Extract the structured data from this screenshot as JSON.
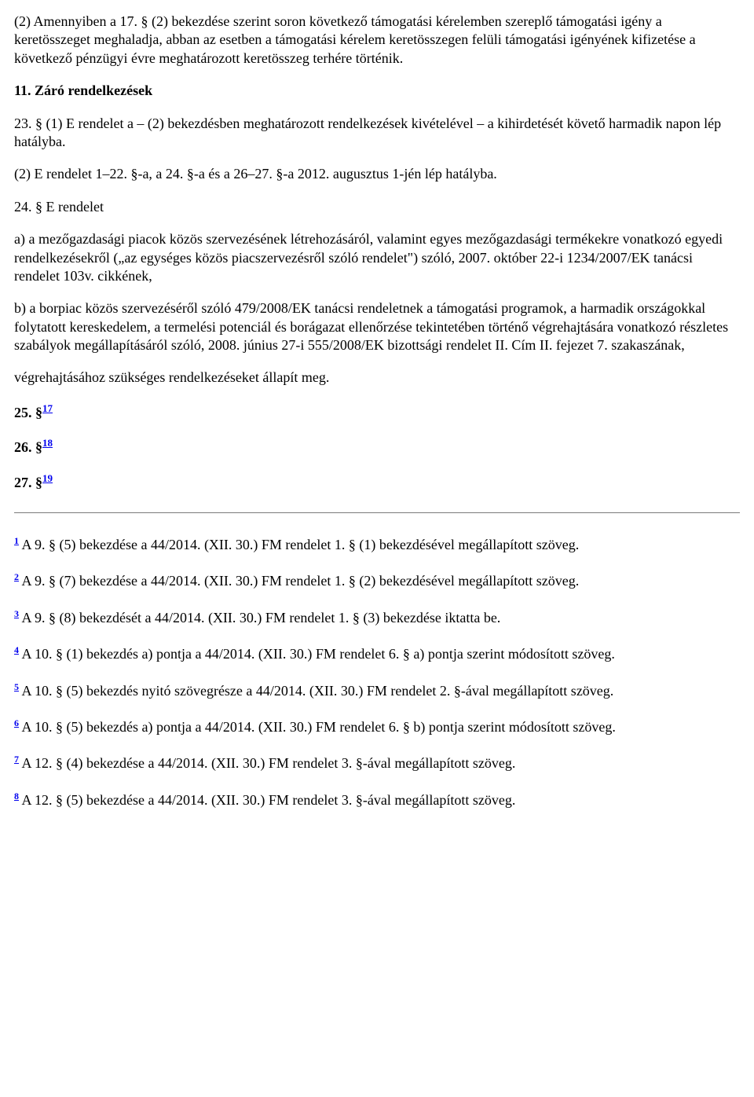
{
  "p1": "(2) Amennyiben a 17. § (2) bekezdése szerint soron következő támogatási kérelemben szereplő támogatási igény a keretösszeget meghaladja, abban az esetben a támogatási kérelem keretösszegen felüli támogatási igényének kifizetése a következő pénzügyi évre meghatározott keretösszeg terhére történik.",
  "h11": "11. Záró rendelkezések",
  "p23": "23. § (1) E rendelet a – (2) bekezdésben meghatározott rendelkezések kivételével – a kihirdetését követő harmadik napon lép hatályba.",
  "p23b": "(2) E rendelet 1–22. §-a, a 24. §-a és a 26–27. §-a 2012. augusztus 1-jén lép hatályba.",
  "p24_lead": "24. § E rendelet",
  "p24_a": "a) a mezőgazdasági piacok közös szervezésének létrehozásáról, valamint egyes mezőgazdasági termékekre vonatkozó egyedi rendelkezésekről („az egységes közös piacszervezésről szóló rendelet\") szóló, 2007. október 22-i 1234/2007/EK tanácsi rendelet 103v. cikkének,",
  "p24_b": "b) a borpiac közös szervezéséről szóló 479/2008/EK tanácsi rendeletnek a támogatási programok, a harmadik országokkal folytatott kereskedelem, a termelési potenciál és borágazat ellenőrzése tekintetében történő végrehajtására vonatkozó részletes szabályok megállapításáról szóló, 2008. június 27-i 555/2008/EK bizottsági rendelet II. Cím II. fejezet 7. szakaszának,",
  "p24_tail": "végrehajtásához szükséges rendelkezéseket állapít meg.",
  "s25_label": "25. §",
  "s25_ref": "17",
  "s26_label": "26. §",
  "s26_ref": "18",
  "s27_label": "27. §",
  "s27_ref": "19",
  "footnotes": [
    {
      "n": "1",
      "text": " A 9. § (5) bekezdése a 44/2014. (XII. 30.) FM rendelet 1. § (1) bekezdésével megállapított szöveg."
    },
    {
      "n": "2",
      "text": " A 9. § (7) bekezdése a 44/2014. (XII. 30.) FM rendelet 1. § (2) bekezdésével megállapított szöveg."
    },
    {
      "n": "3",
      "text": " A 9. § (8) bekezdését a 44/2014. (XII. 30.) FM rendelet 1. § (3) bekezdése iktatta be."
    },
    {
      "n": "4",
      "text": " A 10. § (1) bekezdés a) pontja a 44/2014. (XII. 30.) FM rendelet 6. § a) pontja szerint módosított szöveg."
    },
    {
      "n": "5",
      "text": " A 10. § (5) bekezdés nyitó szövegrésze a 44/2014. (XII. 30.) FM rendelet 2. §-ával megállapított szöveg."
    },
    {
      "n": "6",
      "text": " A 10. § (5) bekezdés a) pontja a 44/2014. (XII. 30.) FM rendelet 6. § b) pontja szerint módosított szöveg."
    },
    {
      "n": "7",
      "text": " A 12. § (4) bekezdése a 44/2014. (XII. 30.) FM rendelet 3. §-ával megállapított szöveg."
    },
    {
      "n": "8",
      "text": " A 12. § (5) bekezdése a 44/2014. (XII. 30.) FM rendelet 3. §-ával megállapított szöveg."
    }
  ]
}
